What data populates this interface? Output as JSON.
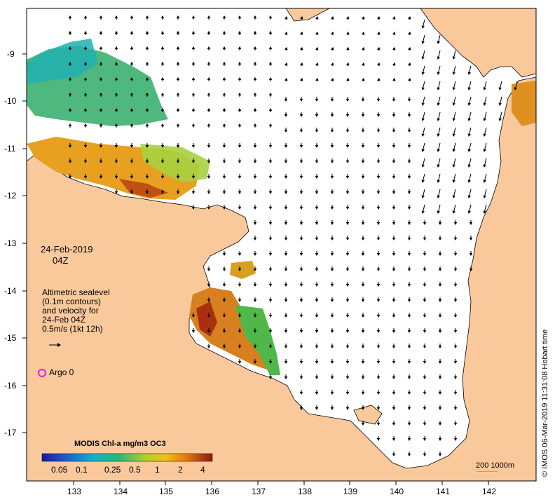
{
  "map": {
    "lat_labels": [
      "-9",
      "-10",
      "-11",
      "-12",
      "-13",
      "-14",
      "-15",
      "-16",
      "-17"
    ],
    "lon_labels": [
      "133",
      "134",
      "135",
      "136",
      "137",
      "138",
      "139",
      "140",
      "141",
      "142"
    ]
  },
  "date_block": {
    "date": "24-Feb-2019",
    "time": "04Z"
  },
  "info_block": {
    "lines": [
      "Altimetric sealevel",
      "(0.1m contours)",
      "and velocity for",
      "24-Feb 04Z",
      "0.5m/s (1kt 12h)"
    ]
  },
  "argo": {
    "label": "Argo 0",
    "color": "#e020e0"
  },
  "colorbar": {
    "title": "MODIS Chl-a mg/m3 OC3",
    "labels": [
      "0.05",
      "0.1",
      "0.25",
      "0.5",
      "1",
      "2",
      "4"
    ]
  },
  "scale": {
    "label": "200  1000m"
  },
  "credit": "© IMOS 06-Mar-2019 11:31:08 Hobart time",
  "colors": {
    "land": "#f9c99c",
    "sea": "#ffffff",
    "coast": "#000000",
    "arrow": "#000000"
  }
}
